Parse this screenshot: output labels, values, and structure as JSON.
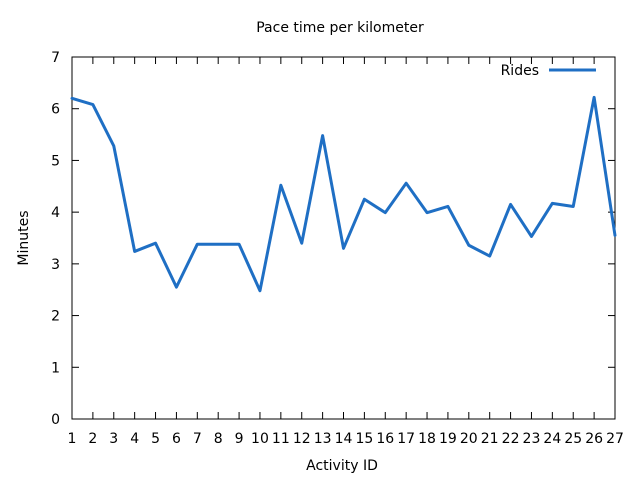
{
  "chart_data": {
    "type": "line",
    "title": "Pace time per kilometer",
    "xlabel": "Activity ID",
    "ylabel": "Minutes",
    "xlim": [
      1,
      27
    ],
    "ylim": [
      0,
      7
    ],
    "x_ticks": [
      1,
      2,
      3,
      4,
      5,
      6,
      7,
      8,
      9,
      10,
      11,
      12,
      13,
      14,
      15,
      16,
      17,
      18,
      19,
      20,
      21,
      22,
      23,
      24,
      25,
      26,
      27
    ],
    "y_ticks": [
      0,
      1,
      2,
      3,
      4,
      5,
      6,
      7
    ],
    "grid": false,
    "legend_position": "top-right",
    "series": [
      {
        "name": "Rides",
        "color": "#1f6fc4",
        "x": [
          1,
          2,
          3,
          4,
          5,
          6,
          7,
          8,
          9,
          10,
          11,
          12,
          13,
          14,
          15,
          16,
          17,
          18,
          19,
          20,
          21,
          22,
          23,
          24,
          25,
          26,
          27
        ],
        "values": [
          6.2,
          6.08,
          5.28,
          3.24,
          3.4,
          2.55,
          3.38,
          3.38,
          3.38,
          2.48,
          4.52,
          3.4,
          5.48,
          3.3,
          4.25,
          3.99,
          4.56,
          3.99,
          4.11,
          3.36,
          3.15,
          4.15,
          3.53,
          4.17,
          4.11,
          6.22,
          3.55
        ]
      }
    ]
  }
}
